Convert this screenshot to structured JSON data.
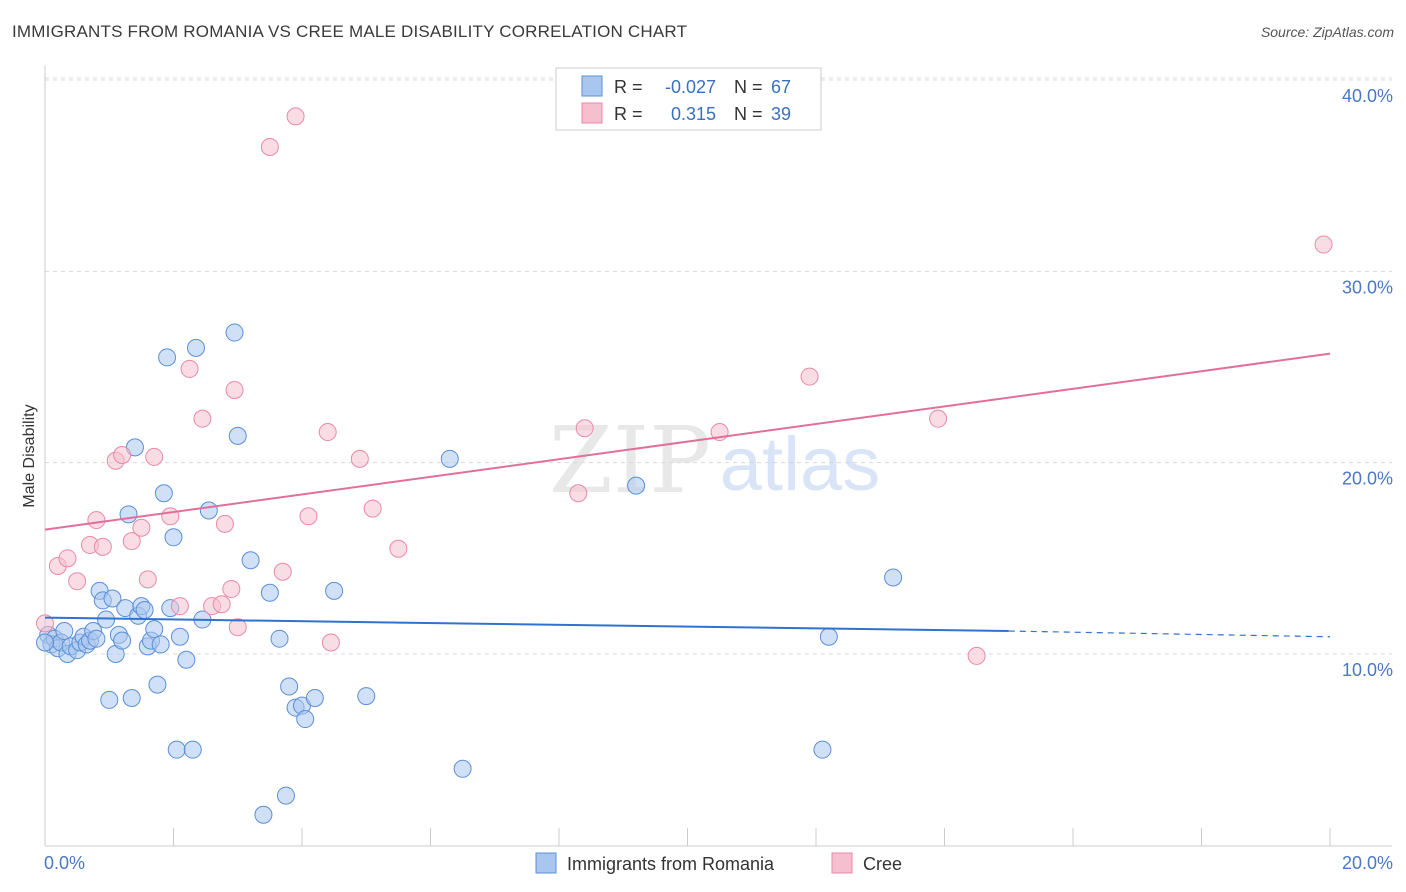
{
  "header": {
    "title": "IMMIGRANTS FROM ROMANIA VS CREE MALE DISABILITY CORRELATION CHART",
    "source": "Source: ZipAtlas.com"
  },
  "watermark": {
    "zip": "ZIP",
    "atlas": "atlas"
  },
  "legend": {
    "r_label": "R =",
    "n_label": "N =",
    "rows": [
      {
        "r": "-0.027",
        "n": "67"
      },
      {
        "r": "0.315",
        "n": "39"
      }
    ]
  },
  "colors": {
    "romania_fill": "#a9c7ee",
    "romania_stroke": "#5b8fd6",
    "romania_line": "#2f72cf",
    "cree_fill": "#f6bfd0",
    "cree_stroke": "#e88aa8",
    "cree_line": "#e0709a",
    "grid": "#d9d9d9",
    "axis_text": "#4a78c4"
  },
  "chart_data": {
    "type": "scatter",
    "title": "IMMIGRANTS FROM ROMANIA VS CREE MALE DISABILITY CORRELATION CHART",
    "xlabel": "",
    "ylabel": "Male Disability",
    "xlim": [
      0,
      20
    ],
    "ylim": [
      0,
      42
    ],
    "x_tick_labels": [
      "0.0%",
      "20.0%"
    ],
    "y_ticks": [
      10,
      20,
      30,
      40
    ],
    "y_tick_labels": [
      "10.0%",
      "20.0%",
      "30.0%",
      "40.0%"
    ],
    "series": [
      {
        "name": "Immigrants from Romania",
        "r": -0.027,
        "n": 67,
        "trend": {
          "x0": 0,
          "y0": 11.9,
          "x1": 15,
          "y1": 11.2,
          "dash_to_x": 20,
          "dash_to_y": 10.9
        },
        "points": [
          [
            0.05,
            11.0
          ],
          [
            0.1,
            10.5
          ],
          [
            0.15,
            10.8
          ],
          [
            0.2,
            10.3
          ],
          [
            0.25,
            10.6
          ],
          [
            0.3,
            11.2
          ],
          [
            0.35,
            10.0
          ],
          [
            0.4,
            10.4
          ],
          [
            0.5,
            10.2
          ],
          [
            0.55,
            10.6
          ],
          [
            0.6,
            10.9
          ],
          [
            0.65,
            10.5
          ],
          [
            0.7,
            10.7
          ],
          [
            0.75,
            11.2
          ],
          [
            0.8,
            10.8
          ],
          [
            0.85,
            13.3
          ],
          [
            0.9,
            12.8
          ],
          [
            0.95,
            11.8
          ],
          [
            1.0,
            7.6
          ],
          [
            1.05,
            12.9
          ],
          [
            1.1,
            10.0
          ],
          [
            1.15,
            11.0
          ],
          [
            1.2,
            10.7
          ],
          [
            1.25,
            12.4
          ],
          [
            1.3,
            17.3
          ],
          [
            1.35,
            7.7
          ],
          [
            1.4,
            20.8
          ],
          [
            1.45,
            12.0
          ],
          [
            1.5,
            12.5
          ],
          [
            1.55,
            12.3
          ],
          [
            1.6,
            10.4
          ],
          [
            1.65,
            10.7
          ],
          [
            1.7,
            11.3
          ],
          [
            1.75,
            8.4
          ],
          [
            1.8,
            10.5
          ],
          [
            1.85,
            18.4
          ],
          [
            1.9,
            25.5
          ],
          [
            1.95,
            12.4
          ],
          [
            2.0,
            16.1
          ],
          [
            2.05,
            5.0
          ],
          [
            2.1,
            10.9
          ],
          [
            2.2,
            9.7
          ],
          [
            2.3,
            5.0
          ],
          [
            2.35,
            26.0
          ],
          [
            2.45,
            11.8
          ],
          [
            2.55,
            17.5
          ],
          [
            2.95,
            26.8
          ],
          [
            3.0,
            21.4
          ],
          [
            3.2,
            14.9
          ],
          [
            3.4,
            1.6
          ],
          [
            3.5,
            13.2
          ],
          [
            3.65,
            10.8
          ],
          [
            3.75,
            2.6
          ],
          [
            3.8,
            8.3
          ],
          [
            3.9,
            7.2
          ],
          [
            4.0,
            7.3
          ],
          [
            4.05,
            6.6
          ],
          [
            4.2,
            7.7
          ],
          [
            4.5,
            13.3
          ],
          [
            5.0,
            7.8
          ],
          [
            6.3,
            20.2
          ],
          [
            6.5,
            4.0
          ],
          [
            9.2,
            18.8
          ],
          [
            12.1,
            5.0
          ],
          [
            12.2,
            10.9
          ],
          [
            13.2,
            14.0
          ],
          [
            0.0,
            10.6
          ]
        ]
      },
      {
        "name": "Cree",
        "r": 0.315,
        "n": 39,
        "trend": {
          "x0": 0,
          "y0": 16.5,
          "x1": 20,
          "y1": 25.7
        },
        "points": [
          [
            0.0,
            11.6
          ],
          [
            0.2,
            14.6
          ],
          [
            0.35,
            15.0
          ],
          [
            0.5,
            13.8
          ],
          [
            0.7,
            15.7
          ],
          [
            0.8,
            17.0
          ],
          [
            0.9,
            15.6
          ],
          [
            1.1,
            20.1
          ],
          [
            1.2,
            20.4
          ],
          [
            1.35,
            15.9
          ],
          [
            1.5,
            16.6
          ],
          [
            1.6,
            13.9
          ],
          [
            1.7,
            20.3
          ],
          [
            1.95,
            17.2
          ],
          [
            2.1,
            12.5
          ],
          [
            2.25,
            24.9
          ],
          [
            2.45,
            22.3
          ],
          [
            2.6,
            12.5
          ],
          [
            2.75,
            12.6
          ],
          [
            2.8,
            16.8
          ],
          [
            2.9,
            13.4
          ],
          [
            2.95,
            23.8
          ],
          [
            3.0,
            11.4
          ],
          [
            3.5,
            36.5
          ],
          [
            3.7,
            14.3
          ],
          [
            3.9,
            38.1
          ],
          [
            4.1,
            17.2
          ],
          [
            4.4,
            21.6
          ],
          [
            4.45,
            10.6
          ],
          [
            4.9,
            20.2
          ],
          [
            5.1,
            17.6
          ],
          [
            5.5,
            15.5
          ],
          [
            8.3,
            18.4
          ],
          [
            8.4,
            21.8
          ],
          [
            10.5,
            21.6
          ],
          [
            11.9,
            24.5
          ],
          [
            13.9,
            22.3
          ],
          [
            14.5,
            9.9
          ],
          [
            19.9,
            31.4
          ]
        ]
      }
    ]
  },
  "bottom_legend": {
    "items": [
      "Immigrants from Romania",
      "Cree"
    ]
  }
}
